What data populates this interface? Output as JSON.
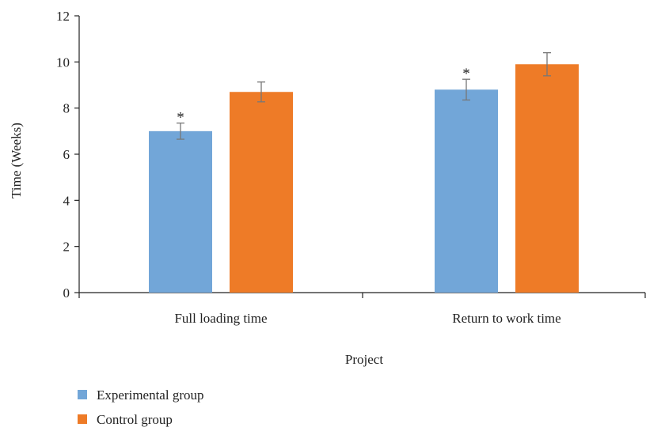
{
  "chart_data": {
    "type": "bar",
    "title": "",
    "xlabel": "Project",
    "ylabel": "Time (Weeks)",
    "ylim": [
      0,
      12
    ],
    "yticks": [
      0,
      2,
      4,
      6,
      8,
      10,
      12
    ],
    "categories": [
      "Full loading time",
      "Return to work time"
    ],
    "series": [
      {
        "name": "Experimental group",
        "color": "#72a6d8",
        "values": [
          7.0,
          8.8
        ],
        "errors": [
          0.35,
          0.45
        ],
        "annotations": [
          "*",
          "*"
        ]
      },
      {
        "name": "Control group",
        "color": "#ee7b27",
        "values": [
          8.7,
          9.9
        ],
        "errors": [
          0.43,
          0.5
        ],
        "annotations": [
          "",
          ""
        ]
      }
    ],
    "grid": false,
    "legend_position": "bottom-left"
  }
}
